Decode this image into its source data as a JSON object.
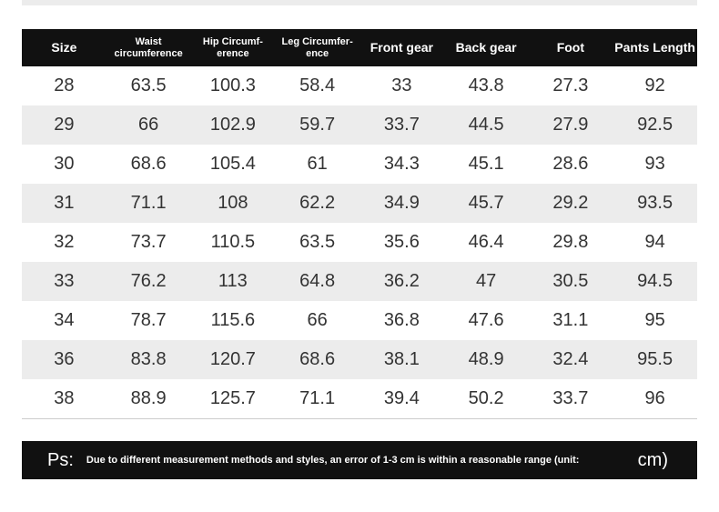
{
  "table": {
    "header": [
      [
        "Size"
      ],
      [
        "Waist",
        "circumference"
      ],
      [
        "Hip Circumf-",
        "erence"
      ],
      [
        "Leg Circumfer-",
        "ence"
      ],
      [
        "Front gear"
      ],
      [
        "Back gear"
      ],
      [
        "Foot"
      ],
      [
        "Pants Length"
      ]
    ],
    "rows": [
      [
        "28",
        "63.5",
        "100.3",
        "58.4",
        "33",
        "43.8",
        "27.3",
        "92"
      ],
      [
        "29",
        "66",
        "102.9",
        "59.7",
        "33.7",
        "44.5",
        "27.9",
        "92.5"
      ],
      [
        "30",
        "68.6",
        "105.4",
        "61",
        "34.3",
        "45.1",
        "28.6",
        "93"
      ],
      [
        "31",
        "71.1",
        "108",
        "62.2",
        "34.9",
        "45.7",
        "29.2",
        "93.5"
      ],
      [
        "32",
        "73.7",
        "110.5",
        "63.5",
        "35.6",
        "46.4",
        "29.8",
        "94"
      ],
      [
        "33",
        "76.2",
        "113",
        "64.8",
        "36.2",
        "47",
        "30.5",
        "94.5"
      ],
      [
        "34",
        "78.7",
        "115.6",
        "66",
        "36.8",
        "47.6",
        "31.1",
        "95"
      ],
      [
        "36",
        "83.8",
        "120.7",
        "68.6",
        "38.1",
        "48.9",
        "32.4",
        "95.5"
      ],
      [
        "38",
        "88.9",
        "125.7",
        "71.1",
        "39.4",
        "50.2",
        "33.7",
        "96"
      ]
    ]
  },
  "note": {
    "prefix": "Ps:",
    "text": "Due to different measurement methods and styles, an error of 1-3 cm is within a reasonable range (unit:",
    "unit": "cm)"
  }
}
